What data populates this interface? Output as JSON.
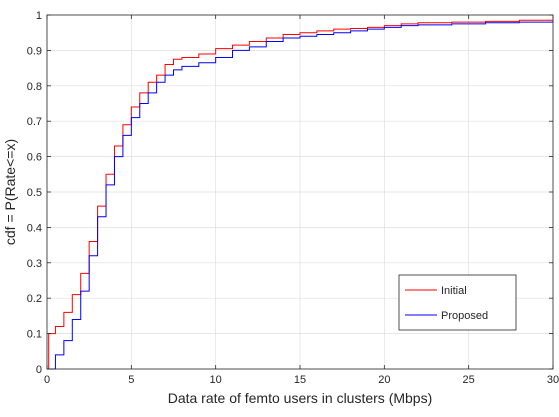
{
  "chart_data": {
    "type": "line",
    "title": "",
    "xlabel": "Data rate of femto users in clusters (Mbps)",
    "ylabel": "cdf = P(Rate<=x)",
    "xlim": [
      0,
      30
    ],
    "ylim": [
      0,
      1
    ],
    "xticks": [
      0,
      5,
      10,
      15,
      20,
      25,
      30
    ],
    "yticks": [
      0,
      0.1,
      0.2,
      0.3,
      0.4,
      0.5,
      0.6,
      0.7,
      0.8,
      0.9,
      1
    ],
    "grid": true,
    "legend_position": "bottom-right",
    "series": [
      {
        "name": "Initial",
        "color": "#ff0000",
        "x": [
          0,
          0.1,
          0.5,
          1,
          1.5,
          2,
          2.5,
          3,
          3.5,
          4,
          4.5,
          5,
          5.5,
          6,
          6.5,
          7,
          7.5,
          8,
          9,
          10,
          11,
          12,
          13,
          14,
          15,
          16,
          17,
          18,
          19,
          20,
          21,
          22,
          24,
          26,
          28,
          30
        ],
        "y": [
          0.0,
          0.1,
          0.12,
          0.16,
          0.21,
          0.27,
          0.36,
          0.46,
          0.55,
          0.63,
          0.69,
          0.74,
          0.78,
          0.81,
          0.83,
          0.86,
          0.875,
          0.88,
          0.89,
          0.905,
          0.915,
          0.925,
          0.935,
          0.945,
          0.95,
          0.955,
          0.96,
          0.962,
          0.965,
          0.97,
          0.975,
          0.978,
          0.98,
          0.982,
          0.985,
          0.987
        ]
      },
      {
        "name": "Proposed",
        "color": "#0000ff",
        "x": [
          0,
          0.5,
          1,
          1.5,
          2,
          2.5,
          3,
          3.5,
          4,
          4.5,
          5,
          5.5,
          6,
          6.5,
          7,
          7.5,
          8,
          9,
          10,
          11,
          12,
          13,
          14,
          15,
          16,
          17,
          18,
          19,
          20,
          21,
          22,
          24,
          26,
          28,
          30
        ],
        "y": [
          0.0,
          0.04,
          0.08,
          0.14,
          0.22,
          0.32,
          0.43,
          0.52,
          0.6,
          0.66,
          0.71,
          0.75,
          0.78,
          0.81,
          0.83,
          0.845,
          0.855,
          0.865,
          0.88,
          0.9,
          0.91,
          0.925,
          0.935,
          0.94,
          0.945,
          0.95,
          0.955,
          0.96,
          0.965,
          0.97,
          0.972,
          0.975,
          0.978,
          0.98,
          0.982
        ]
      }
    ]
  }
}
